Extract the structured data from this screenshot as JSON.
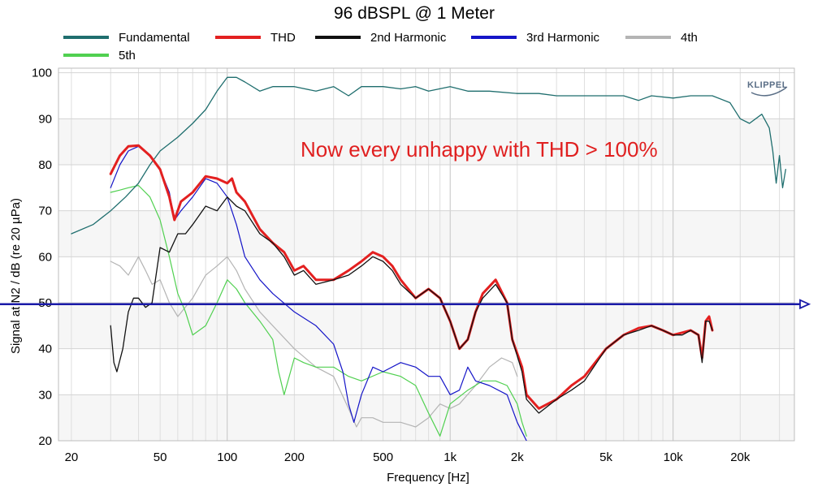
{
  "chart_data": {
    "type": "line",
    "title": "96 dBSPL @ 1 Meter",
    "xlabel": "Frequency [Hz]",
    "ylabel": "Signal at N2 / dB (re 20 µPa)",
    "x_scale": "log",
    "xlim": [
      17.5,
      35000
    ],
    "ylim": [
      20,
      101
    ],
    "grid": true,
    "legend_position": "top",
    "x_tick_labels": [
      {
        "v": 20,
        "label": "20"
      },
      {
        "v": 50,
        "label": "50"
      },
      {
        "v": 100,
        "label": "100"
      },
      {
        "v": 200,
        "label": "200"
      },
      {
        "v": 500,
        "label": "500"
      },
      {
        "v": 1000,
        "label": "1k"
      },
      {
        "v": 2000,
        "label": "2k"
      },
      {
        "v": 5000,
        "label": "5k"
      },
      {
        "v": 10000,
        "label": "10k"
      },
      {
        "v": 20000,
        "label": "20k"
      }
    ],
    "y_ticks": [
      20,
      30,
      40,
      50,
      60,
      70,
      80,
      90,
      100
    ],
    "annotation": {
      "text": "Now every unhappy with THD > 100%",
      "color": "#e02020"
    },
    "reference_line": {
      "y": 49.7,
      "color": "#1a1aa8"
    },
    "logo": "KLIPPEL",
    "series": [
      {
        "name": "Fundamental",
        "color": "#1f6e6e",
        "width": 1.3,
        "points": [
          [
            20,
            65
          ],
          [
            25,
            67
          ],
          [
            30,
            70
          ],
          [
            35,
            73
          ],
          [
            40,
            76
          ],
          [
            45,
            80
          ],
          [
            50,
            83
          ],
          [
            60,
            86
          ],
          [
            70,
            89
          ],
          [
            80,
            92
          ],
          [
            90,
            96
          ],
          [
            100,
            99
          ],
          [
            110,
            99
          ],
          [
            120,
            98
          ],
          [
            140,
            96
          ],
          [
            160,
            97
          ],
          [
            200,
            97
          ],
          [
            250,
            96
          ],
          [
            300,
            97
          ],
          [
            350,
            95
          ],
          [
            400,
            97
          ],
          [
            500,
            97
          ],
          [
            600,
            96.5
          ],
          [
            700,
            97
          ],
          [
            800,
            96
          ],
          [
            1000,
            97
          ],
          [
            1200,
            96
          ],
          [
            1500,
            96
          ],
          [
            2000,
            95.5
          ],
          [
            2500,
            95.5
          ],
          [
            3000,
            95
          ],
          [
            4000,
            95
          ],
          [
            5000,
            95
          ],
          [
            6000,
            95
          ],
          [
            7000,
            94
          ],
          [
            8000,
            95
          ],
          [
            10000,
            94.5
          ],
          [
            12000,
            95
          ],
          [
            15000,
            95
          ],
          [
            18000,
            93.5
          ],
          [
            20000,
            90
          ],
          [
            22000,
            89
          ],
          [
            25000,
            91
          ],
          [
            27000,
            88
          ],
          [
            28000,
            83
          ],
          [
            29000,
            76
          ],
          [
            30000,
            82
          ],
          [
            31000,
            75
          ],
          [
            32000,
            79
          ]
        ]
      },
      {
        "name": "THD",
        "color": "#e32020",
        "width": 3,
        "points": [
          [
            30,
            78
          ],
          [
            33,
            82
          ],
          [
            36,
            84
          ],
          [
            40,
            84.2
          ],
          [
            45,
            82
          ],
          [
            50,
            79
          ],
          [
            55,
            73
          ],
          [
            58,
            68
          ],
          [
            62,
            72
          ],
          [
            70,
            74
          ],
          [
            80,
            77.5
          ],
          [
            90,
            77
          ],
          [
            100,
            76
          ],
          [
            105,
            77
          ],
          [
            110,
            74
          ],
          [
            120,
            72
          ],
          [
            140,
            66
          ],
          [
            160,
            63
          ],
          [
            180,
            61
          ],
          [
            200,
            57
          ],
          [
            220,
            58
          ],
          [
            250,
            55
          ],
          [
            300,
            55
          ],
          [
            350,
            57
          ],
          [
            400,
            59
          ],
          [
            450,
            61
          ],
          [
            500,
            60
          ],
          [
            550,
            58
          ],
          [
            600,
            55
          ],
          [
            700,
            51
          ],
          [
            800,
            53
          ],
          [
            900,
            51
          ],
          [
            1000,
            46
          ],
          [
            1100,
            40
          ],
          [
            1200,
            42
          ],
          [
            1300,
            48
          ],
          [
            1400,
            52
          ],
          [
            1600,
            55
          ],
          [
            1800,
            50
          ],
          [
            1900,
            42
          ],
          [
            2100,
            36
          ],
          [
            2200,
            30
          ],
          [
            2500,
            27
          ],
          [
            3000,
            29
          ],
          [
            3500,
            32
          ],
          [
            4000,
            34
          ],
          [
            5000,
            40
          ],
          [
            6000,
            43
          ],
          [
            7000,
            44.5
          ],
          [
            8000,
            45
          ],
          [
            9000,
            44
          ],
          [
            10000,
            43
          ],
          [
            11000,
            43.5
          ],
          [
            12000,
            44
          ],
          [
            13000,
            43
          ],
          [
            13500,
            38
          ],
          [
            14000,
            46
          ],
          [
            14500,
            47
          ],
          [
            15000,
            44
          ]
        ]
      },
      {
        "name": "2nd Harmonic",
        "color": "#111111",
        "width": 1.3,
        "points": [
          [
            30,
            45
          ],
          [
            31,
            37
          ],
          [
            32,
            35
          ],
          [
            34,
            40
          ],
          [
            36,
            48
          ],
          [
            38,
            51
          ],
          [
            40,
            51
          ],
          [
            43,
            49
          ],
          [
            46,
            50
          ],
          [
            50,
            62
          ],
          [
            55,
            61
          ],
          [
            60,
            65
          ],
          [
            65,
            65
          ],
          [
            70,
            67
          ],
          [
            80,
            71
          ],
          [
            90,
            70
          ],
          [
            100,
            73
          ],
          [
            110,
            71
          ],
          [
            120,
            70
          ],
          [
            140,
            65
          ],
          [
            160,
            63
          ],
          [
            180,
            60
          ],
          [
            200,
            56
          ],
          [
            220,
            57
          ],
          [
            250,
            54
          ],
          [
            300,
            55
          ],
          [
            350,
            56
          ],
          [
            400,
            58
          ],
          [
            450,
            60
          ],
          [
            500,
            59
          ],
          [
            550,
            57
          ],
          [
            600,
            54
          ],
          [
            700,
            51
          ],
          [
            800,
            53
          ],
          [
            900,
            51
          ],
          [
            1000,
            46
          ],
          [
            1100,
            40
          ],
          [
            1200,
            42
          ],
          [
            1300,
            48
          ],
          [
            1400,
            51
          ],
          [
            1600,
            54
          ],
          [
            1800,
            50
          ],
          [
            1900,
            42
          ],
          [
            2100,
            35
          ],
          [
            2200,
            29
          ],
          [
            2500,
            26
          ],
          [
            3000,
            29
          ],
          [
            3500,
            31
          ],
          [
            4000,
            33
          ],
          [
            5000,
            40
          ],
          [
            6000,
            43
          ],
          [
            7000,
            44
          ],
          [
            8000,
            45
          ],
          [
            9000,
            44
          ],
          [
            10000,
            43
          ],
          [
            11000,
            43
          ],
          [
            12000,
            44
          ],
          [
            13000,
            43
          ],
          [
            13500,
            37
          ],
          [
            14000,
            46
          ],
          [
            14500,
            46
          ],
          [
            15000,
            44
          ]
        ]
      },
      {
        "name": "3rd Harmonic",
        "color": "#1515c8",
        "width": 1.2,
        "points": [
          [
            30,
            75
          ],
          [
            33,
            80
          ],
          [
            36,
            83
          ],
          [
            40,
            84
          ],
          [
            45,
            82
          ],
          [
            50,
            79
          ],
          [
            55,
            74
          ],
          [
            58,
            68
          ],
          [
            62,
            70
          ],
          [
            70,
            73
          ],
          [
            80,
            77
          ],
          [
            90,
            76
          ],
          [
            100,
            73
          ],
          [
            110,
            67
          ],
          [
            120,
            60
          ],
          [
            140,
            55
          ],
          [
            160,
            52
          ],
          [
            200,
            48
          ],
          [
            250,
            45
          ],
          [
            300,
            41
          ],
          [
            330,
            35
          ],
          [
            350,
            28
          ],
          [
            370,
            24
          ],
          [
            400,
            30
          ],
          [
            450,
            36
          ],
          [
            500,
            35
          ],
          [
            600,
            37
          ],
          [
            700,
            36
          ],
          [
            800,
            34
          ],
          [
            900,
            34
          ],
          [
            1000,
            30
          ],
          [
            1100,
            31
          ],
          [
            1200,
            36
          ],
          [
            1300,
            33
          ],
          [
            1500,
            32
          ],
          [
            1800,
            30
          ],
          [
            2000,
            24
          ],
          [
            2200,
            20
          ]
        ]
      },
      {
        "name": "4th",
        "color": "#b4b4b4",
        "width": 1.2,
        "points": [
          [
            30,
            59
          ],
          [
            33,
            58
          ],
          [
            36,
            56
          ],
          [
            40,
            60
          ],
          [
            43,
            57
          ],
          [
            46,
            54
          ],
          [
            50,
            55
          ],
          [
            55,
            50
          ],
          [
            60,
            47
          ],
          [
            70,
            51
          ],
          [
            80,
            56
          ],
          [
            90,
            58
          ],
          [
            100,
            60
          ],
          [
            110,
            57
          ],
          [
            120,
            53
          ],
          [
            140,
            48
          ],
          [
            160,
            45
          ],
          [
            200,
            40
          ],
          [
            250,
            36
          ],
          [
            300,
            34
          ],
          [
            350,
            27
          ],
          [
            380,
            23
          ],
          [
            400,
            25
          ],
          [
            450,
            25
          ],
          [
            500,
            24
          ],
          [
            600,
            24
          ],
          [
            700,
            23
          ],
          [
            800,
            25
          ],
          [
            900,
            28
          ],
          [
            1000,
            27
          ],
          [
            1100,
            28
          ],
          [
            1300,
            32
          ],
          [
            1500,
            36
          ],
          [
            1700,
            38
          ],
          [
            1900,
            37
          ],
          [
            2000,
            34
          ]
        ]
      },
      {
        "name": "5th",
        "color": "#50d050",
        "width": 1.2,
        "points": [
          [
            30,
            74
          ],
          [
            33,
            74.5
          ],
          [
            36,
            75
          ],
          [
            40,
            75.5
          ],
          [
            45,
            73
          ],
          [
            50,
            68
          ],
          [
            55,
            60
          ],
          [
            60,
            52
          ],
          [
            65,
            48
          ],
          [
            70,
            43
          ],
          [
            80,
            45
          ],
          [
            90,
            50
          ],
          [
            100,
            55
          ],
          [
            110,
            53
          ],
          [
            120,
            50
          ],
          [
            140,
            46
          ],
          [
            160,
            42
          ],
          [
            170,
            35
          ],
          [
            180,
            30
          ],
          [
            200,
            38
          ],
          [
            220,
            37
          ],
          [
            250,
            36
          ],
          [
            300,
            36
          ],
          [
            350,
            34
          ],
          [
            400,
            33
          ],
          [
            500,
            35
          ],
          [
            600,
            34
          ],
          [
            700,
            32
          ],
          [
            800,
            26
          ],
          [
            900,
            21
          ],
          [
            1000,
            28
          ],
          [
            1200,
            31
          ],
          [
            1400,
            33
          ],
          [
            1600,
            33
          ],
          [
            1800,
            32
          ],
          [
            2000,
            28
          ],
          [
            2100,
            24
          ],
          [
            2200,
            21
          ]
        ]
      }
    ]
  }
}
